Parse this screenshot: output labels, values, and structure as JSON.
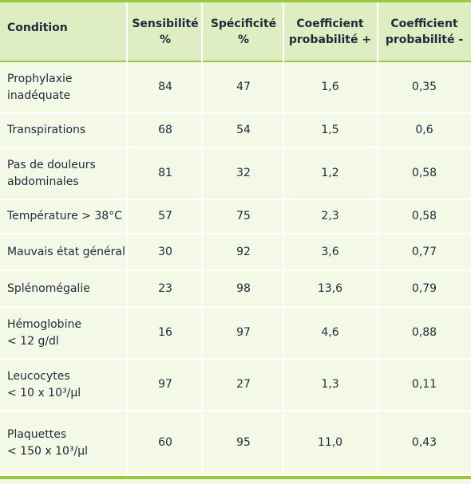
{
  "table": {
    "headers": [
      {
        "lines": [
          "Condition"
        ]
      },
      {
        "lines": [
          "Sensibilité",
          "%"
        ]
      },
      {
        "lines": [
          "Spécificité",
          "%"
        ]
      },
      {
        "lines": [
          "Coefficient",
          "probabilité +"
        ]
      },
      {
        "lines": [
          "Coefficient",
          "probabilité -"
        ]
      }
    ],
    "rows": [
      {
        "condition": [
          "Prophylaxie",
          "inadéquate"
        ],
        "sensibilite": "84",
        "specificite": "47",
        "coef_plus": "1,6",
        "coef_minus": "0,35"
      },
      {
        "condition": [
          "Transpirations"
        ],
        "sensibilite": "68",
        "specificite": "54",
        "coef_plus": "1,5",
        "coef_minus": "0,6"
      },
      {
        "condition": [
          "Pas de douleurs",
          "abdominales"
        ],
        "sensibilite": "81",
        "specificite": "32",
        "coef_plus": "1,2",
        "coef_minus": "0,58"
      },
      {
        "condition": [
          "Température > 38°C"
        ],
        "sensibilite": "57",
        "specificite": "75",
        "coef_plus": "2,3",
        "coef_minus": "0,58"
      },
      {
        "condition": [
          "Mauvais état général"
        ],
        "sensibilite": "30",
        "specificite": "92",
        "coef_plus": "3,6",
        "coef_minus": "0,77"
      },
      {
        "condition": [
          "Splénomégalie"
        ],
        "sensibilite": "23",
        "specificite": "98",
        "coef_plus": "13,6",
        "coef_minus": "0,79"
      },
      {
        "condition": [
          "Hémoglobine",
          "< 12 g/dl"
        ],
        "sensibilite": "16",
        "specificite": "97",
        "coef_plus": "4,6",
        "coef_minus": "0,88"
      },
      {
        "condition": [
          "Leucocytes",
          "< 10 x 10³/µl"
        ],
        "sensibilite": "97",
        "specificite": "27",
        "coef_plus": "1,3",
        "coef_minus": "0,11"
      },
      {
        "condition": [
          "Plaquettes",
          "< 150 x 10³/µl"
        ],
        "sensibilite": "60",
        "specificite": "95",
        "coef_plus": "11,0",
        "coef_minus": "0,43"
      }
    ]
  },
  "colors": {
    "accent": "#9cc83e",
    "header_bg": "#dfedc2",
    "row_bg": "#f4f8e6"
  }
}
